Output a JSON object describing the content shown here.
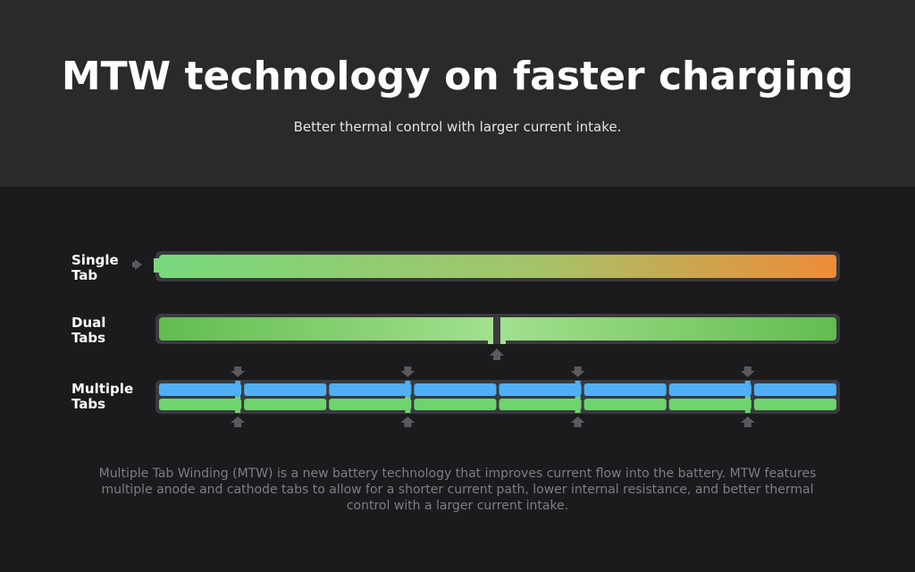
{
  "header": {
    "title": "MTW technology on faster charging",
    "subtitle": "Better thermal control with larger current intake."
  },
  "rows": [
    {
      "label_line1": "Single",
      "label_line2": "Tab"
    },
    {
      "label_line1": "Dual",
      "label_line2": "Tabs"
    },
    {
      "label_line1": "Multiple",
      "label_line2": "Tabs"
    }
  ],
  "description": "Multiple Tab Winding (MTW) is a new battery technology that improves current flow into the battery. MTW features multiple anode and cathode tabs to allow for a shorter current path, lower internal resistance, and better thermal control with a larger current intake.",
  "colors": {
    "hero_bg": "#2a2a2c",
    "body_bg": "#1b1b1e",
    "green": "#6fd36f",
    "blue": "#4fb0f5",
    "hot": "#ec8d3a",
    "arrow": "#5a5a5e"
  }
}
